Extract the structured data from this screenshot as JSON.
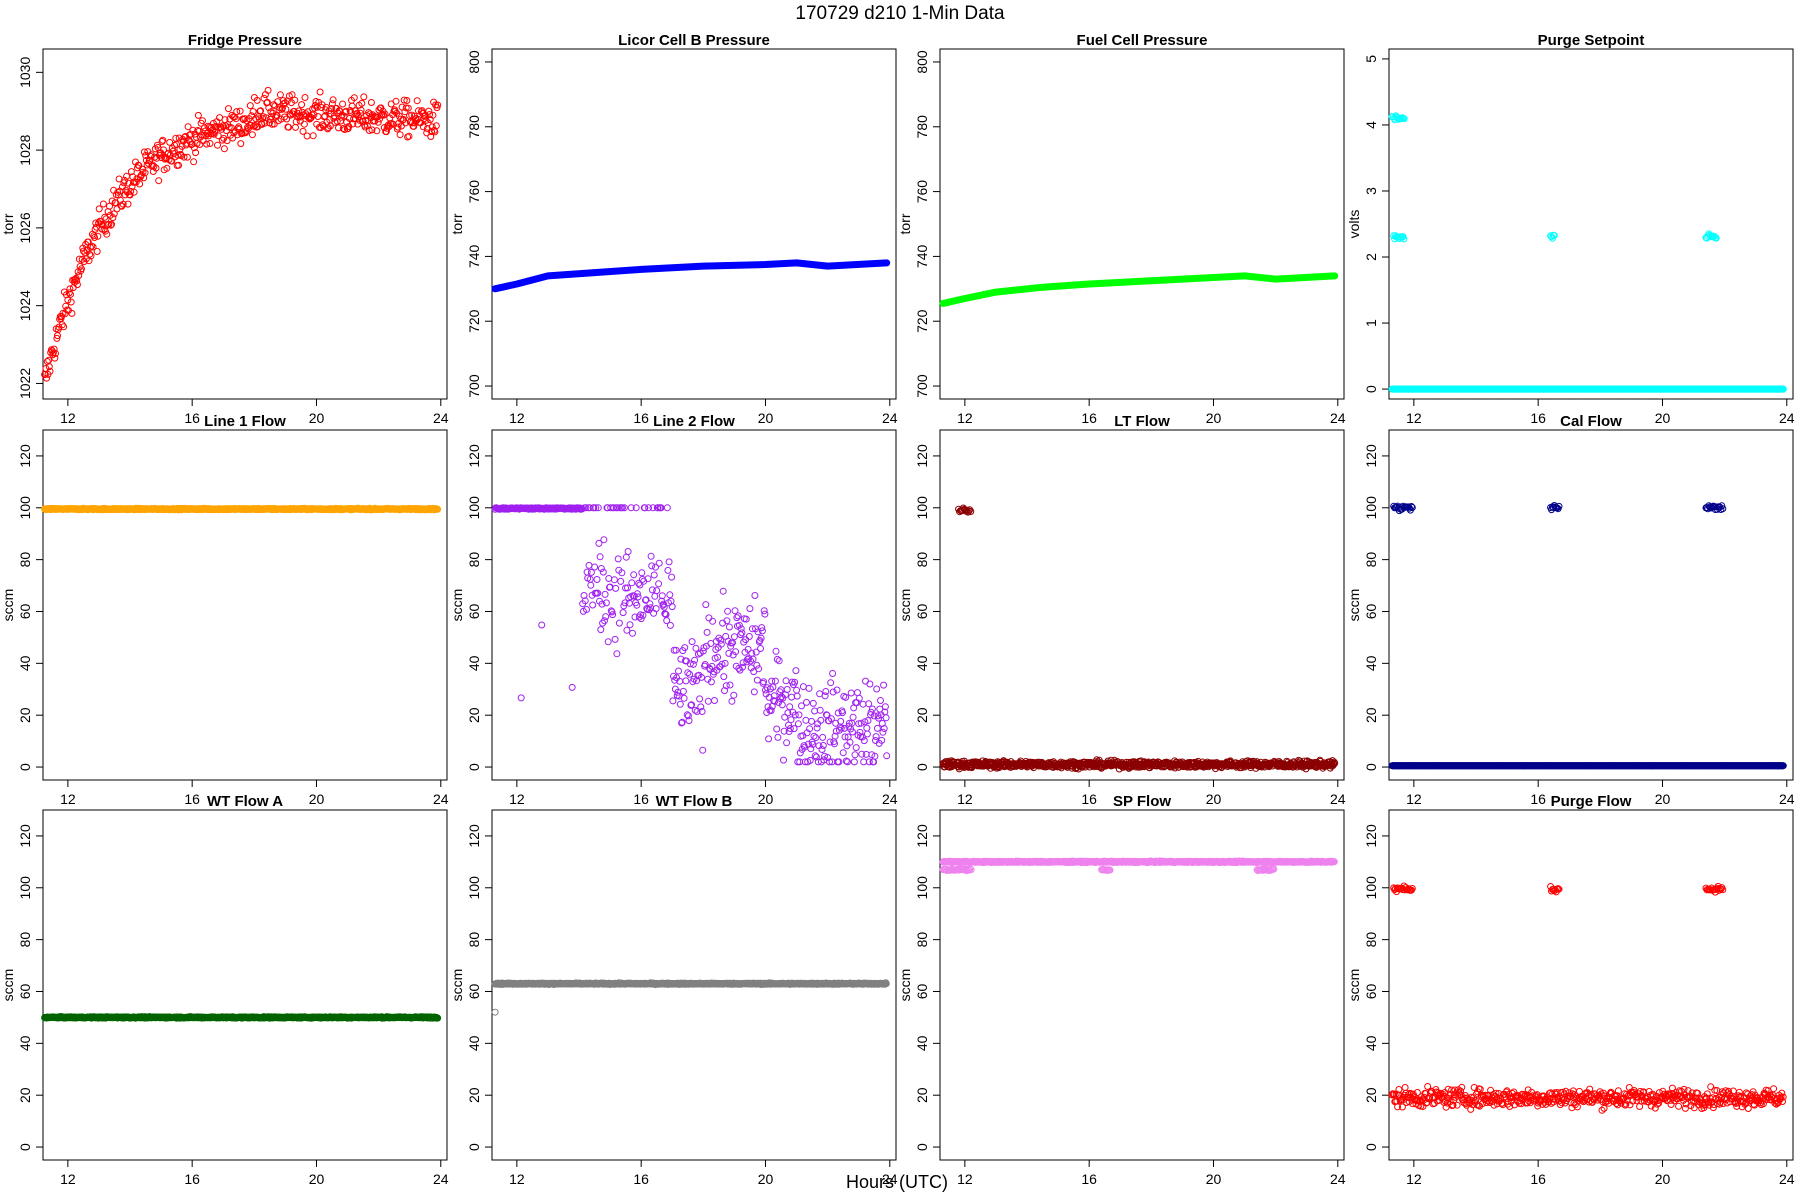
{
  "page": {
    "title": "170729   d210   1-Min Data",
    "xlabel": "Hours (UTC)"
  },
  "chart_data": [
    {
      "type": "scatter",
      "title": "Fridge Pressure",
      "ylabel": "torr",
      "color": "#ff0000",
      "pattern": "fridge",
      "xticks": [
        12,
        16,
        20,
        24
      ],
      "yticks": [
        1022,
        1024,
        1026,
        1028,
        1030
      ],
      "ylim": [
        1021.6,
        1030.6
      ],
      "series": [
        {
          "x_range": [
            11.25,
            23.9
          ],
          "y_approx": {
            "start": 1022,
            "plateau": 1029,
            "end": 1028.5
          }
        }
      ]
    },
    {
      "type": "line",
      "title": "Licor Cell B Pressure",
      "ylabel": "torr",
      "color": "#0000ff",
      "pattern": "licor",
      "xticks": [
        12,
        16,
        20,
        24
      ],
      "yticks": [
        700,
        720,
        740,
        760,
        780,
        800
      ],
      "ylim": [
        696,
        804
      ],
      "series": [
        {
          "x": [
            11.3,
            12.0,
            13.0,
            14.5,
            16.0,
            18.0,
            20.0,
            21.0,
            22.0,
            23.9
          ],
          "y": [
            730,
            731.5,
            734,
            735,
            736,
            737,
            737.5,
            738,
            737,
            738
          ]
        }
      ]
    },
    {
      "type": "line",
      "title": "Fuel Cell Pressure",
      "ylabel": "torr",
      "color": "#00ff00",
      "pattern": "fuel",
      "xticks": [
        12,
        16,
        20,
        24
      ],
      "yticks": [
        700,
        720,
        740,
        760,
        780,
        800
      ],
      "ylim": [
        696,
        804
      ],
      "series": [
        {
          "x": [
            11.3,
            12.0,
            13.0,
            14.5,
            16.0,
            18.0,
            20.0,
            21.0,
            22.0,
            23.9
          ],
          "y": [
            725.5,
            727,
            729,
            730.5,
            731.5,
            732.5,
            733.5,
            734,
            733,
            734
          ]
        }
      ]
    },
    {
      "type": "scatter",
      "title": "Purge Setpoint",
      "ylabel": "volts",
      "color": "#00ffff",
      "pattern": "purgesp",
      "xticks": [
        12,
        16,
        20,
        24
      ],
      "yticks": [
        0,
        1,
        2,
        3,
        4,
        5
      ],
      "ylim": [
        -0.15,
        5.15
      ],
      "series": [
        {
          "baseline": 0,
          "clusters": [
            {
              "x": [
                11.35,
                11.7
              ],
              "y": 2.3
            },
            {
              "x": [
                11.3,
                11.7
              ],
              "y": 4.1
            },
            {
              "x": [
                16.4,
                16.55
              ],
              "y": 2.3
            },
            {
              "x": [
                21.4,
                21.75
              ],
              "y": 2.3
            }
          ]
        }
      ]
    },
    {
      "type": "scatter",
      "title": "Line 1 Flow",
      "ylabel": "sccm",
      "color": "#ffa500",
      "pattern": "line1",
      "xticks": [
        12,
        16,
        20,
        24
      ],
      "yticks": [
        0,
        20,
        40,
        60,
        80,
        100,
        120
      ],
      "ylim": [
        -5,
        130
      ],
      "series": [
        {
          "x_range": [
            11.25,
            23.9
          ],
          "y": 99.5
        }
      ]
    },
    {
      "type": "scatter",
      "title": "Line 2 Flow",
      "ylabel": "sccm",
      "color": "#a020f0",
      "pattern": "line2",
      "xticks": [
        12,
        16,
        20,
        24
      ],
      "yticks": [
        0,
        20,
        40,
        60,
        80,
        100,
        120
      ],
      "ylim": [
        -5,
        130
      ],
      "series": [
        {
          "x_range": [
            11.3,
            23.9
          ],
          "y_approx": {
            "early": 100,
            "late_mean": 20
          }
        }
      ]
    },
    {
      "type": "scatter",
      "title": "LT Flow",
      "ylabel": "sccm",
      "color": "#8b0000",
      "pattern": "lt",
      "xticks": [
        12,
        16,
        20,
        24
      ],
      "yticks": [
        0,
        20,
        40,
        60,
        80,
        100,
        120
      ],
      "ylim": [
        -5,
        130
      ],
      "series": [
        {
          "baseline": 1,
          "clusters": [
            {
              "x": [
                11.8,
                12.2
              ],
              "y": 99
            }
          ]
        }
      ]
    },
    {
      "type": "scatter",
      "title": "Cal Flow",
      "ylabel": "sccm",
      "color": "#00008b",
      "pattern": "cal",
      "xticks": [
        12,
        16,
        20,
        24
      ],
      "yticks": [
        0,
        20,
        40,
        60,
        80,
        100,
        120
      ],
      "ylim": [
        -5,
        130
      ],
      "series": [
        {
          "baseline": 0.5,
          "clusters": [
            {
              "x": [
                11.35,
                11.95
              ],
              "y": 100
            },
            {
              "x": [
                16.4,
                16.7
              ],
              "y": 100
            },
            {
              "x": [
                21.4,
                21.95
              ],
              "y": 100
            }
          ]
        }
      ]
    },
    {
      "type": "scatter",
      "title": "WT Flow A",
      "ylabel": "sccm",
      "color": "#006400",
      "pattern": "wta",
      "xticks": [
        12,
        16,
        20,
        24
      ],
      "yticks": [
        0,
        20,
        40,
        60,
        80,
        100,
        120
      ],
      "ylim": [
        -5,
        130
      ],
      "series": [
        {
          "x_range": [
            11.25,
            23.9
          ],
          "y": 50
        }
      ]
    },
    {
      "type": "scatter",
      "title": "WT Flow B",
      "ylabel": "sccm",
      "color": "#808080",
      "pattern": "wtb",
      "xticks": [
        12,
        16,
        20,
        24
      ],
      "yticks": [
        0,
        20,
        40,
        60,
        80,
        100,
        120
      ],
      "ylim": [
        -5,
        130
      ],
      "series": [
        {
          "x_range": [
            11.3,
            23.9
          ],
          "y": 63,
          "outlier": {
            "x": 11.3,
            "y": 52
          }
        }
      ]
    },
    {
      "type": "scatter",
      "title": "SP Flow",
      "ylabel": "sccm",
      "color": "#ee82ee",
      "pattern": "sp",
      "xticks": [
        12,
        16,
        20,
        24
      ],
      "yticks": [
        0,
        20,
        40,
        60,
        80,
        100,
        120
      ],
      "ylim": [
        -5,
        130
      ],
      "series": [
        {
          "x_range": [
            11.3,
            23.9
          ],
          "y": 110,
          "dips": [
            {
              "x": [
                11.3,
                12.2
              ],
              "y": 107
            },
            {
              "x": [
                16.4,
                16.7
              ],
              "y": 107
            },
            {
              "x": [
                21.4,
                21.95
              ],
              "y": 107
            }
          ]
        }
      ]
    },
    {
      "type": "scatter",
      "title": "Purge Flow",
      "ylabel": "sccm",
      "color": "#ff0000",
      "pattern": "purge",
      "xticks": [
        12,
        16,
        20,
        24
      ],
      "yticks": [
        0,
        20,
        40,
        60,
        80,
        100,
        120
      ],
      "ylim": [
        -5,
        130
      ],
      "series": [
        {
          "baseline_mean": 19,
          "clusters": [
            {
              "x": [
                11.35,
                11.95
              ],
              "y": 99.5
            },
            {
              "x": [
                16.4,
                16.7
              ],
              "y": 99.5
            },
            {
              "x": [
                21.4,
                21.95
              ],
              "y": 99.5
            }
          ]
        }
      ]
    }
  ]
}
